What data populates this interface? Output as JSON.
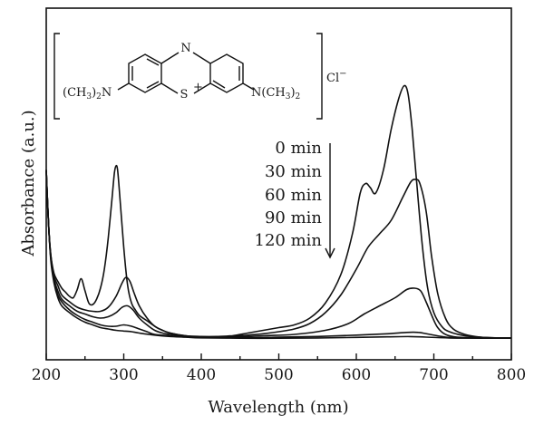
{
  "chart_data": {
    "type": "line",
    "title": "",
    "xlabel": "Wavelength (nm)",
    "ylabel": "Absorbance (a.u.)",
    "xlim": [
      200,
      800
    ],
    "ylim": [
      0,
      2.0
    ],
    "x_ticks": [
      "200",
      "300",
      "400",
      "500",
      "600",
      "700",
      "800"
    ],
    "grid": false,
    "legend_position": "top-right-center",
    "series": [
      {
        "name": "0 min",
        "points": [
          [
            200,
            1.25
          ],
          [
            203,
            0.85
          ],
          [
            206,
            0.62
          ],
          [
            210,
            0.49
          ],
          [
            215,
            0.43
          ],
          [
            220,
            0.38
          ],
          [
            225,
            0.35
          ],
          [
            230,
            0.32
          ],
          [
            235,
            0.31
          ],
          [
            240,
            0.37
          ],
          [
            245,
            0.45
          ],
          [
            250,
            0.36
          ],
          [
            255,
            0.27
          ],
          [
            260,
            0.26
          ],
          [
            265,
            0.3
          ],
          [
            270,
            0.38
          ],
          [
            275,
            0.52
          ],
          [
            280,
            0.75
          ],
          [
            285,
            1.05
          ],
          [
            288,
            1.23
          ],
          [
            290,
            1.28
          ],
          [
            292,
            1.25
          ],
          [
            295,
            1.05
          ],
          [
            300,
            0.68
          ],
          [
            305,
            0.4
          ],
          [
            310,
            0.27
          ],
          [
            315,
            0.22
          ],
          [
            320,
            0.18
          ],
          [
            330,
            0.14
          ],
          [
            340,
            0.1
          ],
          [
            350,
            0.07
          ],
          [
            360,
            0.05
          ],
          [
            380,
            0.03
          ],
          [
            400,
            0.025
          ],
          [
            420,
            0.025
          ],
          [
            440,
            0.03
          ],
          [
            460,
            0.05
          ],
          [
            480,
            0.07
          ],
          [
            500,
            0.09
          ],
          [
            520,
            0.11
          ],
          [
            540,
            0.16
          ],
          [
            560,
            0.27
          ],
          [
            580,
            0.48
          ],
          [
            595,
            0.78
          ],
          [
            605,
            1.08
          ],
          [
            612,
            1.15
          ],
          [
            618,
            1.12
          ],
          [
            625,
            1.08
          ],
          [
            635,
            1.25
          ],
          [
            645,
            1.55
          ],
          [
            655,
            1.78
          ],
          [
            662,
            1.87
          ],
          [
            667,
            1.8
          ],
          [
            672,
            1.55
          ],
          [
            678,
            1.15
          ],
          [
            685,
            0.7
          ],
          [
            692,
            0.38
          ],
          [
            700,
            0.2
          ],
          [
            710,
            0.1
          ],
          [
            720,
            0.06
          ],
          [
            740,
            0.03
          ],
          [
            760,
            0.02
          ],
          [
            780,
            0.015
          ],
          [
            800,
            0.015
          ]
        ]
      },
      {
        "name": "30 min",
        "points": [
          [
            200,
            1.25
          ],
          [
            203,
            0.85
          ],
          [
            206,
            0.62
          ],
          [
            210,
            0.47
          ],
          [
            215,
            0.4
          ],
          [
            220,
            0.33
          ],
          [
            230,
            0.28
          ],
          [
            240,
            0.24
          ],
          [
            250,
            0.22
          ],
          [
            260,
            0.21
          ],
          [
            270,
            0.21
          ],
          [
            280,
            0.24
          ],
          [
            290,
            0.32
          ],
          [
            298,
            0.42
          ],
          [
            303,
            0.46
          ],
          [
            308,
            0.43
          ],
          [
            313,
            0.35
          ],
          [
            320,
            0.25
          ],
          [
            330,
            0.16
          ],
          [
            340,
            0.1
          ],
          [
            350,
            0.07
          ],
          [
            360,
            0.05
          ],
          [
            380,
            0.03
          ],
          [
            400,
            0.02
          ],
          [
            420,
            0.02
          ],
          [
            440,
            0.025
          ],
          [
            460,
            0.035
          ],
          [
            480,
            0.045
          ],
          [
            500,
            0.06
          ],
          [
            520,
            0.08
          ],
          [
            540,
            0.12
          ],
          [
            560,
            0.2
          ],
          [
            580,
            0.33
          ],
          [
            600,
            0.52
          ],
          [
            615,
            0.68
          ],
          [
            630,
            0.78
          ],
          [
            645,
            0.88
          ],
          [
            660,
            1.05
          ],
          [
            670,
            1.16
          ],
          [
            676,
            1.18
          ],
          [
            682,
            1.15
          ],
          [
            690,
            0.95
          ],
          [
            697,
            0.62
          ],
          [
            705,
            0.34
          ],
          [
            715,
            0.16
          ],
          [
            725,
            0.08
          ],
          [
            740,
            0.04
          ],
          [
            760,
            0.02
          ],
          [
            780,
            0.015
          ],
          [
            800,
            0.015
          ]
        ]
      },
      {
        "name": "60 min",
        "points": [
          [
            200,
            1.25
          ],
          [
            203,
            0.85
          ],
          [
            206,
            0.6
          ],
          [
            210,
            0.45
          ],
          [
            215,
            0.36
          ],
          [
            220,
            0.3
          ],
          [
            230,
            0.25
          ],
          [
            240,
            0.21
          ],
          [
            250,
            0.19
          ],
          [
            260,
            0.17
          ],
          [
            270,
            0.16
          ],
          [
            280,
            0.17
          ],
          [
            290,
            0.2
          ],
          [
            298,
            0.24
          ],
          [
            305,
            0.25
          ],
          [
            312,
            0.22
          ],
          [
            320,
            0.16
          ],
          [
            330,
            0.11
          ],
          [
            340,
            0.07
          ],
          [
            350,
            0.05
          ],
          [
            360,
            0.04
          ],
          [
            380,
            0.025
          ],
          [
            400,
            0.02
          ],
          [
            440,
            0.02
          ],
          [
            480,
            0.03
          ],
          [
            520,
            0.04
          ],
          [
            560,
            0.07
          ],
          [
            590,
            0.12
          ],
          [
            610,
            0.19
          ],
          [
            630,
            0.25
          ],
          [
            650,
            0.31
          ],
          [
            665,
            0.37
          ],
          [
            675,
            0.38
          ],
          [
            683,
            0.36
          ],
          [
            690,
            0.28
          ],
          [
            698,
            0.17
          ],
          [
            705,
            0.09
          ],
          [
            715,
            0.04
          ],
          [
            730,
            0.02
          ],
          [
            760,
            0.015
          ],
          [
            800,
            0.015
          ]
        ]
      },
      {
        "name": "90 min",
        "points": [
          [
            200,
            1.25
          ],
          [
            203,
            0.85
          ],
          [
            206,
            0.6
          ],
          [
            210,
            0.44
          ],
          [
            215,
            0.33
          ],
          [
            220,
            0.28
          ],
          [
            230,
            0.22
          ],
          [
            240,
            0.18
          ],
          [
            250,
            0.15
          ],
          [
            260,
            0.13
          ],
          [
            270,
            0.11
          ],
          [
            280,
            0.1
          ],
          [
            290,
            0.1
          ],
          [
            300,
            0.11
          ],
          [
            310,
            0.1
          ],
          [
            320,
            0.08
          ],
          [
            330,
            0.06
          ],
          [
            340,
            0.04
          ],
          [
            360,
            0.03
          ],
          [
            380,
            0.02
          ],
          [
            400,
            0.02
          ],
          [
            450,
            0.015
          ],
          [
            500,
            0.02
          ],
          [
            550,
            0.025
          ],
          [
            600,
            0.035
          ],
          [
            640,
            0.045
          ],
          [
            665,
            0.055
          ],
          [
            680,
            0.055
          ],
          [
            695,
            0.04
          ],
          [
            710,
            0.025
          ],
          [
            730,
            0.015
          ],
          [
            800,
            0.012
          ]
        ]
      },
      {
        "name": "120 min",
        "points": [
          [
            200,
            1.25
          ],
          [
            203,
            0.85
          ],
          [
            206,
            0.58
          ],
          [
            210,
            0.42
          ],
          [
            215,
            0.31
          ],
          [
            220,
            0.25
          ],
          [
            230,
            0.2
          ],
          [
            240,
            0.16
          ],
          [
            250,
            0.13
          ],
          [
            260,
            0.11
          ],
          [
            270,
            0.09
          ],
          [
            280,
            0.08
          ],
          [
            290,
            0.07
          ],
          [
            300,
            0.065
          ],
          [
            310,
            0.06
          ],
          [
            320,
            0.05
          ],
          [
            340,
            0.035
          ],
          [
            360,
            0.025
          ],
          [
            380,
            0.02
          ],
          [
            400,
            0.015
          ],
          [
            450,
            0.012
          ],
          [
            500,
            0.012
          ],
          [
            550,
            0.014
          ],
          [
            600,
            0.018
          ],
          [
            640,
            0.022
          ],
          [
            670,
            0.024
          ],
          [
            690,
            0.02
          ],
          [
            720,
            0.014
          ],
          [
            760,
            0.012
          ],
          [
            800,
            0.012
          ]
        ]
      }
    ]
  },
  "legend": {
    "entries": [
      "0 min",
      "30 min",
      "60 min",
      "90 min",
      "120 min"
    ]
  },
  "structure": {
    "n_label": "N",
    "s_label": "S",
    "s_charge": "+",
    "left_group": "(CH",
    "left_sub_3": "3",
    "left_close": ")",
    "left_sub_2": "2",
    "left_n": "N",
    "right_n": "N(CH",
    "right_sub_3": "3",
    "right_close": ")",
    "right_sub_2": "2",
    "counter_ion": "Cl",
    "counter_charge": "−"
  }
}
